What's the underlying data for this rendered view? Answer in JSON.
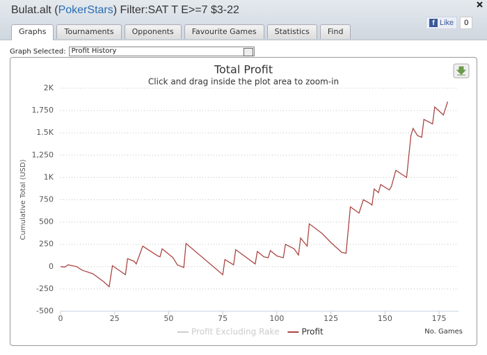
{
  "header": {
    "title_prefix": "Bulat.alt (",
    "site": "PokerStars",
    "title_suffix": ") Filter:SAT T E>=7 $3-22",
    "like": "Like",
    "like_count": "0"
  },
  "tabs": [
    "Graphs",
    "Tournaments",
    "Opponents",
    "Favourite Games",
    "Statistics",
    "Find"
  ],
  "selector": {
    "label": "Graph Selected:",
    "value": "Profit History"
  },
  "chart_data": {
    "type": "line",
    "title": "Total Profit",
    "subtitle": "Click and drag inside the plot area to zoom-in",
    "y_label": "Cumulative Total (USD)",
    "x_label": "No. Games",
    "xlim": [
      0,
      184
    ],
    "xticks": [
      0,
      25,
      50,
      75,
      100,
      125,
      150,
      175
    ],
    "ylim": [
      -500,
      2000
    ],
    "yticks": [
      -500,
      -250,
      0,
      250,
      500,
      750,
      {
        "value": 1000,
        "label": "1K"
      },
      {
        "value": 1250,
        "label": "1,250"
      },
      {
        "value": 1500,
        "label": "1.5K"
      },
      {
        "value": 1750,
        "label": "1,750"
      },
      {
        "value": 2000,
        "label": "2K"
      }
    ],
    "grid": true,
    "series": [
      {
        "name": "Profit Excluding Rake",
        "color": "#cccccc",
        "hidden": true
      },
      {
        "name": "Profit",
        "color": "#aa4643",
        "x": [
          0,
          2,
          3.5,
          7.5,
          10,
          15,
          20,
          22.5,
          24,
          30,
          31,
          34,
          35,
          38,
          45,
          46,
          47,
          52,
          54,
          57,
          58,
          75,
          76,
          80,
          81,
          90,
          91,
          94,
          96,
          97,
          100,
          103,
          104,
          108,
          110,
          111,
          114,
          115,
          121,
          125,
          130,
          132,
          134,
          138,
          140,
          143,
          144,
          145,
          147,
          148,
          152,
          153,
          155,
          160,
          162,
          163,
          165,
          167,
          168,
          172,
          173,
          177,
          179
        ],
        "values": [
          0,
          -5,
          20,
          0,
          -40,
          -80,
          -170,
          -225,
          10,
          -90,
          90,
          60,
          30,
          230,
          120,
          110,
          200,
          100,
          20,
          -10,
          260,
          -90,
          80,
          20,
          190,
          30,
          170,
          110,
          100,
          180,
          120,
          100,
          250,
          200,
          130,
          320,
          230,
          480,
          370,
          270,
          160,
          150,
          670,
          600,
          750,
          710,
          690,
          870,
          830,
          920,
          860,
          900,
          1080,
          1000,
          1470,
          1550,
          1470,
          1450,
          1650,
          1600,
          1790,
          1700,
          1850
        ]
      }
    ]
  }
}
